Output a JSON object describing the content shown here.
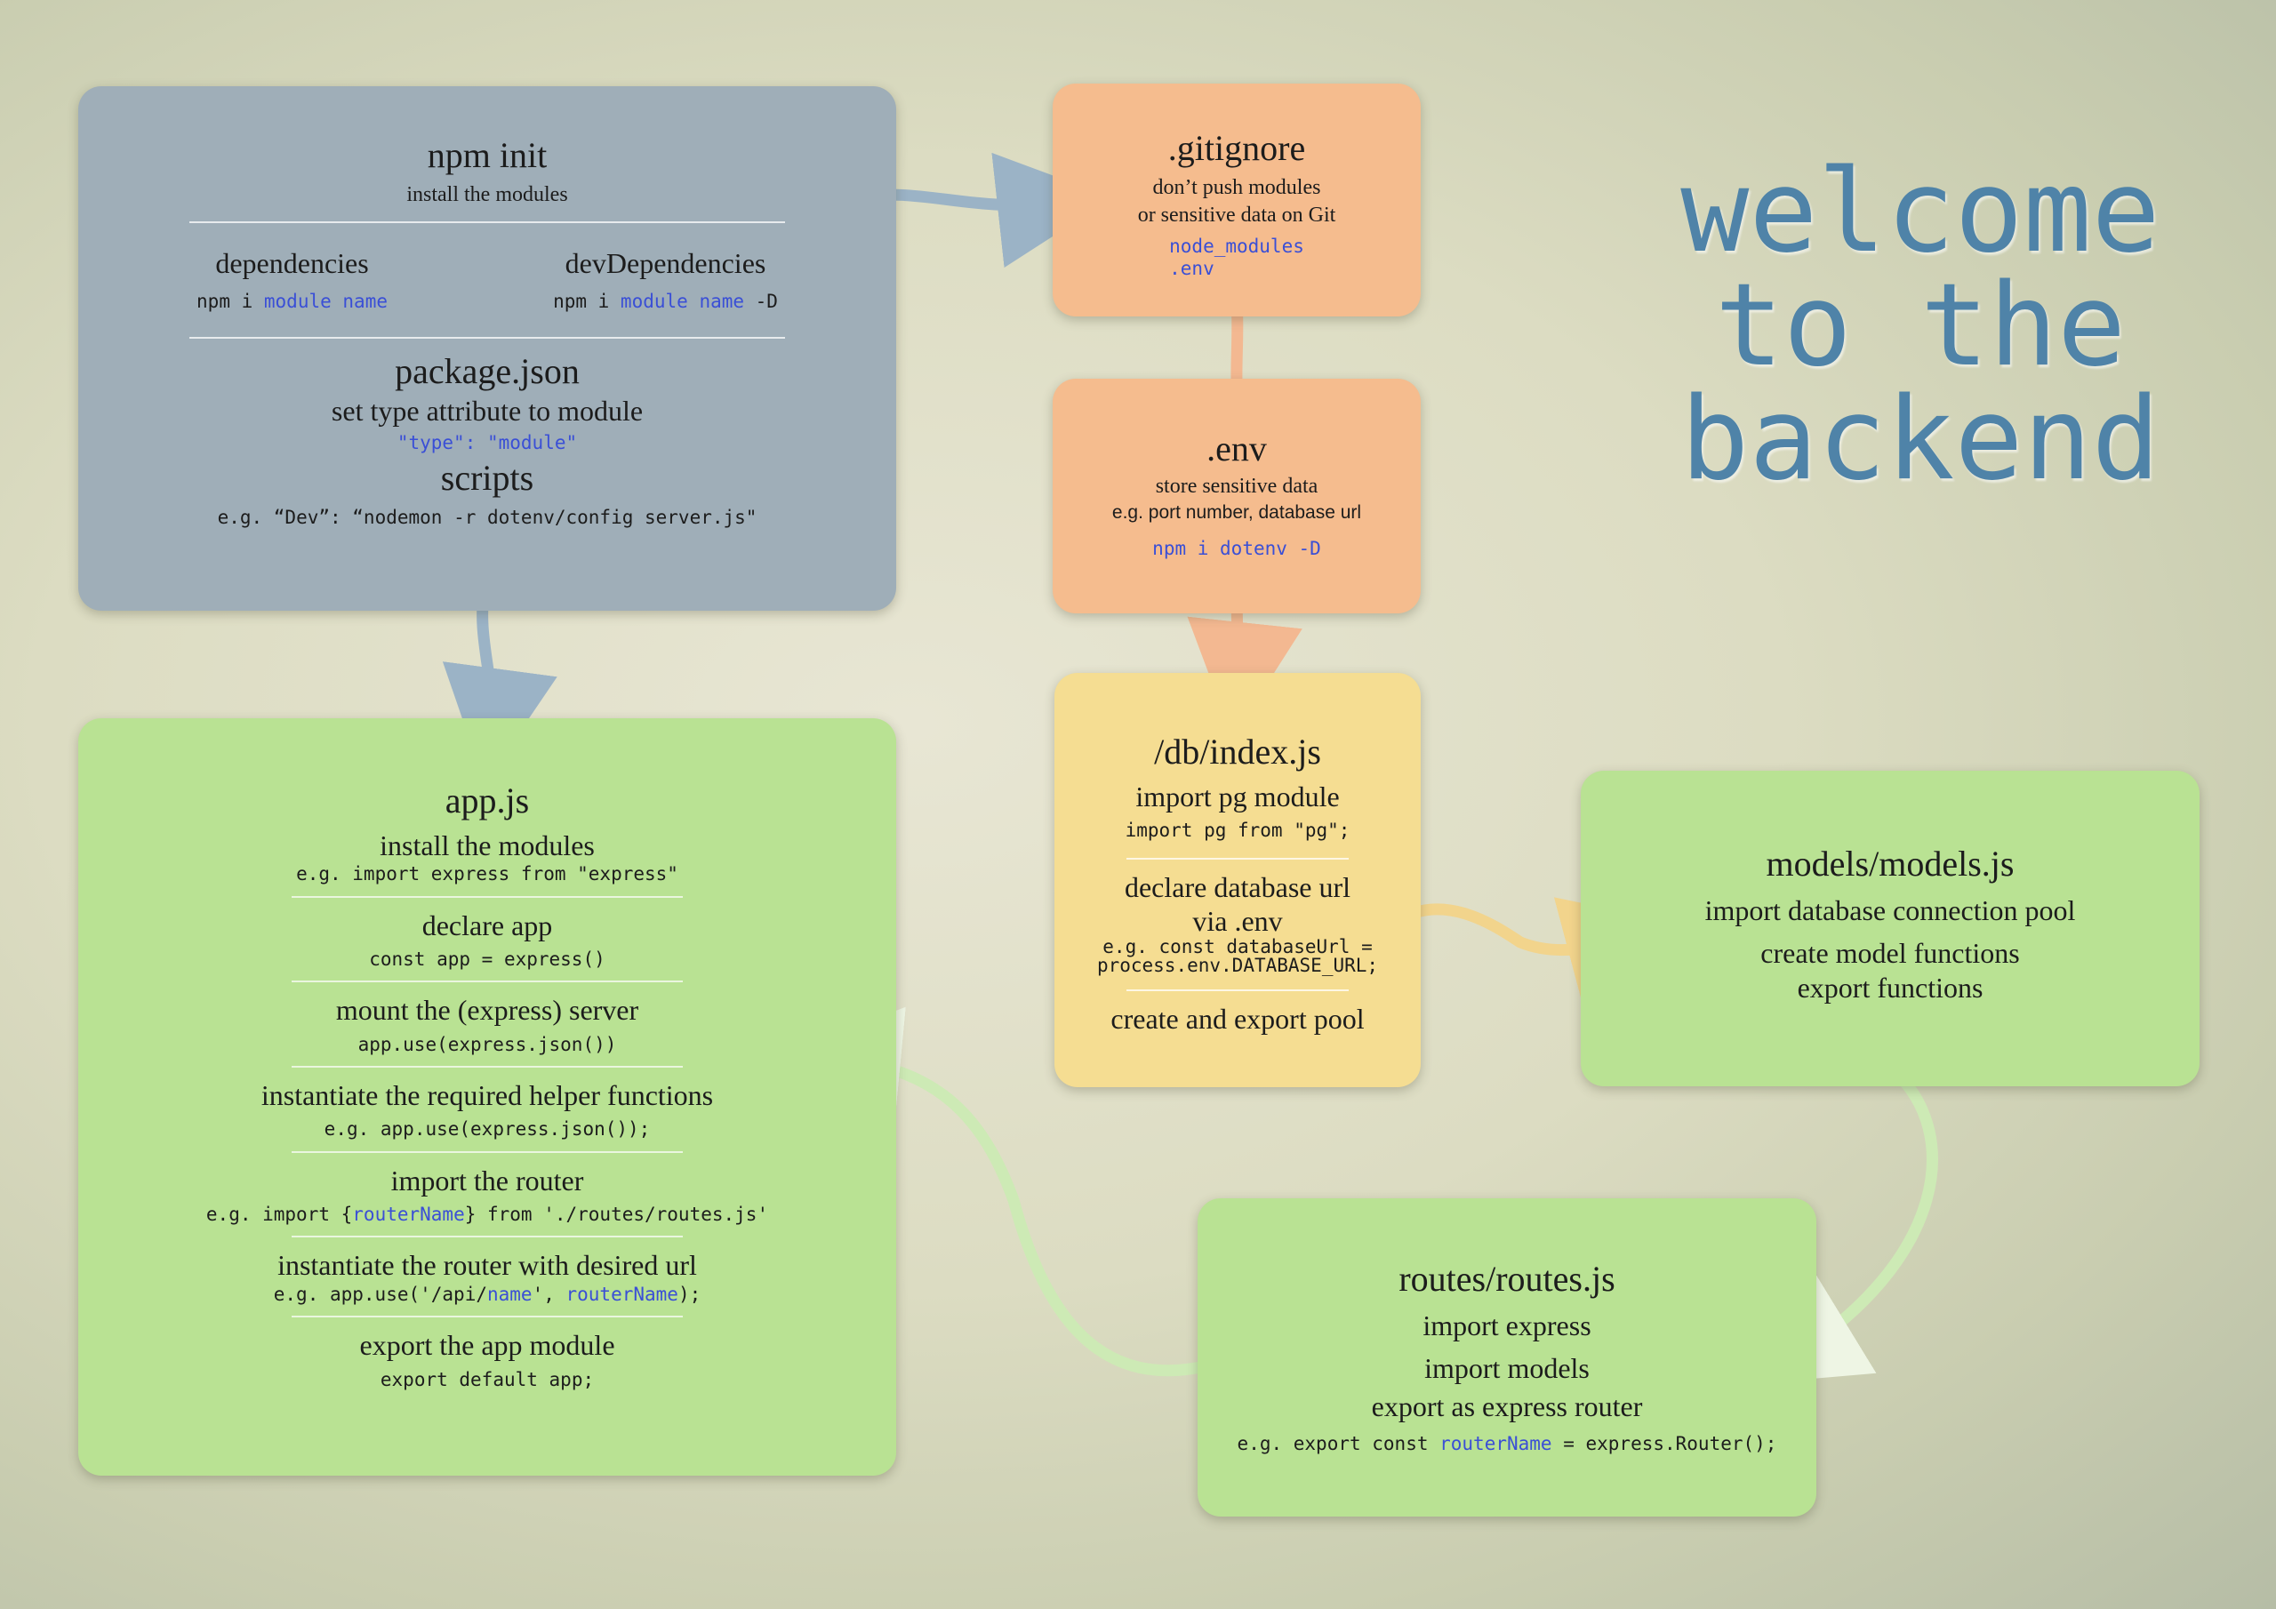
{
  "welcome": {
    "line1": "welcome",
    "line2": "to the",
    "line3": "backend"
  },
  "npm_init": {
    "title": "npm init",
    "subtitle": "install the modules",
    "dependencies": {
      "label": "dependencies",
      "cmd_prefix": "npm i ",
      "cmd_module": "module",
      "cmd_name": "name"
    },
    "dev_dependencies": {
      "label": "devDependencies",
      "cmd_prefix": "npm i ",
      "cmd_module": "module",
      "cmd_name": "name",
      "cmd_suffix": " -D"
    },
    "package_json": {
      "title": "package.json",
      "subtitle": "set type attribute to module",
      "code": "\"type\": \"module\""
    },
    "scripts": {
      "title": "scripts",
      "code": "e.g. “Dev”: “nodemon -r dotenv/config server.js\""
    }
  },
  "gitignore": {
    "title": ".gitignore",
    "line1": "don’t push modules",
    "line2": "or sensitive data on Git",
    "code1": "node_modules",
    "code2": ".env"
  },
  "env": {
    "title": ".env",
    "line1": "store sensitive data",
    "line2": "e.g. port number, database url",
    "code": "npm i dotenv -D"
  },
  "db_index": {
    "title": "/db/index.js",
    "step1": "import pg module",
    "code1": "import pg from \"pg\";",
    "step2a": "declare database url",
    "step2b": "via .env",
    "code2a": "e.g. const databaseUrl =",
    "code2b": "process.env.DATABASE_URL;",
    "step3": "create and export pool"
  },
  "models": {
    "title": "models/models.js",
    "line1": "import database connection pool",
    "line2": "create model functions",
    "line3": "export functions"
  },
  "routes": {
    "title": "routes/routes.js",
    "line1": "import express",
    "line2": "import models",
    "line3": "export as express router",
    "code_prefix": "e.g. export const ",
    "code_name": "routerName",
    "code_suffix": " = express.Router();"
  },
  "app_js": {
    "title": "app.js",
    "s1_title": "install the modules",
    "s1_code": "e.g. import express from \"express\"",
    "s2_title": "declare app",
    "s2_code": "const app = express()",
    "s3_title": "mount the (express) server",
    "s3_code": "app.use(express.json())",
    "s4_title": "instantiate the required helper functions",
    "s4_code": "e.g. app.use(express.json());",
    "s5_title": "import the router",
    "s5_code_a": "e.g. import {",
    "s5_code_name": "routerName",
    "s5_code_b": "} from './routes/routes.js'",
    "s6_title": "instantiate the router with desired url",
    "s6_code_a": "e.g. app.use('/api/",
    "s6_code_name": "name",
    "s6_code_b": "', ",
    "s6_code_router": "routerName",
    "s6_code_c": ");",
    "s7_title": "export the app module",
    "s7_code": "export default app;"
  },
  "colors": {
    "grey_box": "#9faeb8",
    "green_box": "#b9e293",
    "orange_box": "#f5bc8e",
    "yellow_box": "#f5dd92",
    "code_highlight": "#3a4fd6",
    "welcome_text": "#4f83a8"
  }
}
